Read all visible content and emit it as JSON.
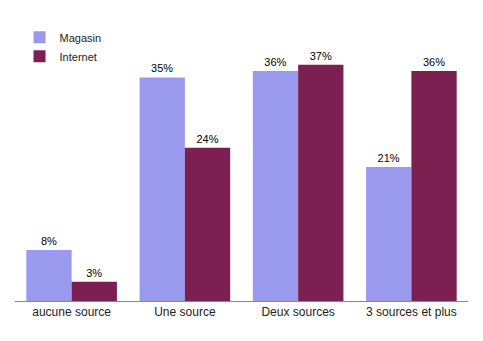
{
  "chart_data": {
    "type": "bar",
    "categories": [
      "aucune source",
      "Une source",
      "Deux sources",
      "3 sources et plus"
    ],
    "series": [
      {
        "name": "Magasin",
        "color": "#9999ee",
        "values": [
          8,
          35,
          36,
          21
        ],
        "value_labels": [
          "8%",
          "35%",
          "36%",
          "21%"
        ]
      },
      {
        "name": "Internet",
        "color": "#7b2050",
        "values": [
          3,
          24,
          37,
          36
        ],
        "value_labels": [
          "3%",
          "24%",
          "37%",
          "36%"
        ]
      }
    ],
    "ylim": [
      0,
      44
    ],
    "grid": false,
    "legend": "upper left",
    "data_labels": true,
    "tick_labels": "x"
  }
}
